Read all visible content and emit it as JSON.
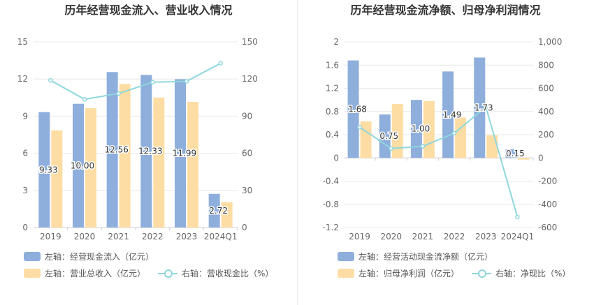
{
  "colors": {
    "bar_primary": "#8eaedc",
    "bar_secondary": "#fedda4",
    "line": "#8ed7dd",
    "grid": "#e8e8e8"
  },
  "chart_data": [
    {
      "type": "bar",
      "title": "历年经营现金流入、营业收入情况",
      "categories": [
        "2019",
        "2020",
        "2021",
        "2022",
        "2023",
        "2024Q1"
      ],
      "series": [
        {
          "name": "左轴：经营现金流入（亿元）",
          "axis": "left",
          "type": "bar",
          "values": [
            9.33,
            10.0,
            12.56,
            12.33,
            11.99,
            2.72
          ]
        },
        {
          "name": "左轴：营业总收入（亿元）",
          "axis": "left",
          "type": "bar",
          "values": [
            7.85,
            9.65,
            11.6,
            10.5,
            10.15,
            2.05
          ]
        },
        {
          "name": "右轴：营收现金比（%）",
          "axis": "right",
          "type": "line",
          "values": [
            118.9,
            103.6,
            108.3,
            117.4,
            118.1,
            132.7
          ]
        }
      ],
      "left_axis": {
        "ylim": [
          0,
          15
        ],
        "ticks": [
          "0",
          "3",
          "6",
          "9",
          "12",
          "15"
        ]
      },
      "right_axis": {
        "ylim": [
          0,
          150
        ],
        "ticks": [
          "0",
          "30",
          "60",
          "90",
          "120",
          "150"
        ]
      },
      "data_labels": [
        "9.33",
        "10.00",
        "12.56",
        "12.33",
        "11.99",
        "2.72"
      ],
      "grid": true,
      "legend": "bottom"
    },
    {
      "type": "bar",
      "title": "历年经营现金流净额、归母净利润情况",
      "categories": [
        "2019",
        "2020",
        "2021",
        "2022",
        "2023",
        "2024Q1"
      ],
      "series": [
        {
          "name": "左轴：经营活动现金流净额（亿元）",
          "axis": "left",
          "type": "bar",
          "values": [
            1.68,
            0.75,
            1.0,
            1.49,
            1.73,
            0.15
          ]
        },
        {
          "name": "左轴：归母净利润（亿元）",
          "axis": "left",
          "type": "bar",
          "values": [
            0.63,
            0.93,
            0.98,
            0.7,
            0.39,
            -0.03
          ]
        },
        {
          "name": "右轴：净现比（%）",
          "axis": "right",
          "type": "line",
          "values": [
            265,
            81,
            100,
            213,
            440,
            -510
          ]
        }
      ],
      "left_axis": {
        "ylim": [
          -1.2,
          2
        ],
        "ticks": [
          "-1.2",
          "-0.8",
          "-0.4",
          "0",
          "0.4",
          "0.8",
          "1.2",
          "1.6",
          "2"
        ]
      },
      "right_axis": {
        "ylim": [
          -600,
          1000
        ],
        "ticks": [
          "-600",
          "-400",
          "-200",
          "0",
          "200",
          "400",
          "600",
          "800",
          "1,000"
        ]
      },
      "data_labels": [
        "1.68",
        "0.75",
        "1.00",
        "1.49",
        "1.73",
        "0.15"
      ],
      "grid": true,
      "legend": "bottom"
    }
  ]
}
